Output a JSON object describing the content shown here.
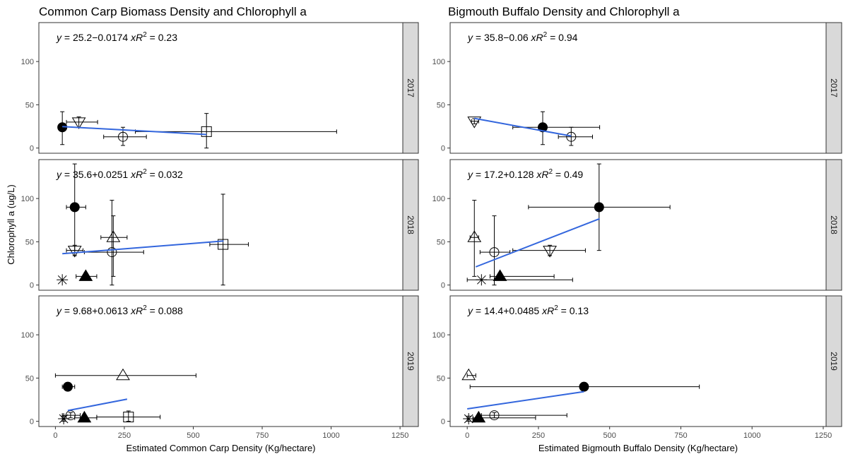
{
  "chart_data": [
    {
      "type": "scatter",
      "title": "Common Carp Biomass Density and Chlorophyll a",
      "xlabel": "Estimated Common Carp Density (Kg/hectare)",
      "ylabel": "Chlorophyll a (ug/L)",
      "xlim": [
        -60,
        1260
      ],
      "ylim": [
        -6,
        145
      ],
      "xticks": [
        "0",
        "250",
        "500",
        "750",
        "1000",
        "1250"
      ],
      "yticks": [
        "0",
        "50",
        "100"
      ],
      "grid": false,
      "facets": [
        {
          "strip": "2017",
          "fit": {
            "intercept": 25.2,
            "slope": -0.0174,
            "x_range": [
              25,
              548
            ]
          },
          "equation": {
            "y_lhs": "y",
            "eq": " = 25.2−0.0174 ",
            "x": "x",
            "r": "R",
            "exp": "2",
            "r2": " = 0.23"
          },
          "points": [
            {
              "shape": "filled-circle",
              "x": 25,
              "y": 24,
              "x_err": [
                20,
                30
              ],
              "y_err": [
                4,
                42
              ]
            },
            {
              "shape": "open-triangle-down",
              "x": 85,
              "y": 30,
              "x_err": [
                40,
                153
              ],
              "y_err": [
                24,
                36
              ]
            },
            {
              "shape": "open-circle",
              "x": 245,
              "y": 13,
              "x_err": [
                175,
                330
              ],
              "y_err": [
                3,
                24
              ]
            },
            {
              "shape": "open-square",
              "x": 548,
              "y": 19,
              "x_err": [
                290,
                1020
              ],
              "y_err": [
                0,
                40
              ]
            }
          ]
        },
        {
          "strip": "2018",
          "fit": {
            "intercept": 35.6,
            "slope": 0.0251,
            "x_range": [
              25,
              610
            ]
          },
          "equation": {
            "y_lhs": "y",
            "eq": " = 35.6+0.0251 ",
            "x": "x",
            "r": "R",
            "exp": "2",
            "r2": " = 0.032"
          },
          "points": [
            {
              "shape": "filled-circle",
              "x": 70,
              "y": 90,
              "x_err": [
                40,
                110
              ],
              "y_err": [
                40,
                140
              ]
            },
            {
              "shape": "open-triangle-down",
              "x": 70,
              "y": 40,
              "x_err": [
                40,
                100
              ],
              "y_err": [
                34,
                46
              ]
            },
            {
              "shape": "open-triangle-up",
              "x": 210,
              "y": 55,
              "x_err": [
                165,
                260
              ],
              "y_err": [
                10,
                80
              ]
            },
            {
              "shape": "open-circle",
              "x": 205,
              "y": 38,
              "x_err": [
                105,
                320
              ],
              "y_err": [
                0,
                98
              ]
            },
            {
              "shape": "open-square",
              "x": 608,
              "y": 47,
              "x_err": [
                560,
                700
              ],
              "y_err": [
                0,
                105
              ]
            },
            {
              "shape": "asterisk",
              "x": 25,
              "y": 6,
              "x_err": [
                25,
                25
              ],
              "y_err": [
                6,
                6
              ]
            },
            {
              "shape": "filled-triangle-up",
              "x": 110,
              "y": 10,
              "x_err": [
                75,
                150
              ],
              "y_err": [
                6,
                14
              ]
            }
          ]
        },
        {
          "strip": "2019",
          "fit": {
            "intercept": 9.68,
            "slope": 0.0613,
            "x_range": [
              45,
              260
            ]
          },
          "equation": {
            "y_lhs": "y",
            "eq": " = 9.68+0.0613 ",
            "x": "x",
            "r": "R",
            "exp": "2",
            "r2": " = 0.088"
          },
          "points": [
            {
              "shape": "filled-circle",
              "x": 45,
              "y": 40,
              "x_err": [
                25,
                70
              ],
              "y_err": [
                36,
                44
              ]
            },
            {
              "shape": "open-triangle-up",
              "x": 245,
              "y": 53,
              "x_err": [
                0,
                510
              ],
              "y_err": [
                53,
                53
              ]
            },
            {
              "shape": "open-circle",
              "x": 55,
              "y": 7,
              "x_err": [
                25,
                90
              ],
              "y_err": [
                4,
                10
              ]
            },
            {
              "shape": "open-square",
              "x": 265,
              "y": 5,
              "x_err": [
                150,
                380
              ],
              "y_err": [
                0,
                12
              ]
            },
            {
              "shape": "asterisk",
              "x": 30,
              "y": 3,
              "x_err": [
                25,
                35
              ],
              "y_err": [
                0,
                6
              ]
            },
            {
              "shape": "filled-triangle-up",
              "x": 105,
              "y": 4,
              "x_err": [
                70,
                150
              ],
              "y_err": [
                2,
                6
              ]
            }
          ]
        }
      ]
    },
    {
      "type": "scatter",
      "title": "Bigmouth Buffalo Density and Chlorophyll a",
      "xlabel": "Estimated Bigmouth Buffalo Density (Kg/hectare)",
      "ylabel": "",
      "xlim": [
        -60,
        1260
      ],
      "ylim": [
        -6,
        145
      ],
      "xticks": [
        "0",
        "250",
        "500",
        "750",
        "1000",
        "1250"
      ],
      "yticks": [
        "0",
        "50",
        "100"
      ],
      "grid": false,
      "facets": [
        {
          "strip": "2017",
          "fit": {
            "intercept": 35.8,
            "slope": -0.06,
            "x_range": [
              25,
              365
            ]
          },
          "equation": {
            "y_lhs": "y",
            "eq": " = 35.8−0.06 ",
            "x": "x",
            "r": "R",
            "exp": "2",
            "r2": " = 0.94"
          },
          "points": [
            {
              "shape": "open-triangle-down",
              "x": 25,
              "y": 31,
              "x_err": [
                15,
                40
              ],
              "y_err": [
                28,
                34
              ]
            },
            {
              "shape": "filled-circle",
              "x": 265,
              "y": 24,
              "x_err": [
                160,
                465
              ],
              "y_err": [
                4,
                42
              ]
            },
            {
              "shape": "open-circle",
              "x": 365,
              "y": 13,
              "x_err": [
                320,
                440
              ],
              "y_err": [
                3,
                24
              ]
            }
          ]
        },
        {
          "strip": "2018",
          "fit": {
            "intercept": 17.2,
            "slope": 0.128,
            "x_range": [
              30,
              465
            ]
          },
          "equation": {
            "y_lhs": "y",
            "eq": " = 17.2+0.128 ",
            "x": "x",
            "r": "R",
            "exp": "2",
            "r2": " = 0.49"
          },
          "points": [
            {
              "shape": "filled-circle",
              "x": 463,
              "y": 90,
              "x_err": [
                215,
                712
              ],
              "y_err": [
                40,
                140
              ]
            },
            {
              "shape": "open-triangle-up",
              "x": 25,
              "y": 55,
              "x_err": [
                10,
                40
              ],
              "y_err": [
                10,
                98
              ]
            },
            {
              "shape": "open-circle",
              "x": 95,
              "y": 38,
              "x_err": [
                45,
                150
              ],
              "y_err": [
                0,
                80
              ]
            },
            {
              "shape": "open-triangle-down",
              "x": 290,
              "y": 40,
              "x_err": [
                160,
                415
              ],
              "y_err": [
                34,
                46
              ]
            },
            {
              "shape": "asterisk",
              "x": 50,
              "y": 6,
              "x_err": [
                0,
                370
              ],
              "y_err": [
                6,
                6
              ]
            },
            {
              "shape": "filled-triangle-up",
              "x": 115,
              "y": 10,
              "x_err": [
                80,
                305
              ],
              "y_err": [
                6,
                14
              ]
            }
          ]
        },
        {
          "strip": "2019",
          "fit": {
            "intercept": 14.4,
            "slope": 0.0485,
            "x_range": [
              0,
              410
            ]
          },
          "equation": {
            "y_lhs": "y",
            "eq": " = 14.4+0.0485 ",
            "x": "x",
            "r": "R",
            "exp": "2",
            "r2": " = 0.13"
          },
          "points": [
            {
              "shape": "open-triangle-up",
              "x": 5,
              "y": 53,
              "x_err": [
                0,
                30
              ],
              "y_err": [
                53,
                53
              ]
            },
            {
              "shape": "filled-circle",
              "x": 410,
              "y": 40,
              "x_err": [
                10,
                815
              ],
              "y_err": [
                36,
                44
              ]
            },
            {
              "shape": "open-circle",
              "x": 95,
              "y": 7,
              "x_err": [
                50,
                350
              ],
              "y_err": [
                4,
                10
              ]
            },
            {
              "shape": "asterisk",
              "x": 5,
              "y": 3,
              "x_err": [
                0,
                20
              ],
              "y_err": [
                0,
                6
              ]
            },
            {
              "shape": "filled-triangle-up",
              "x": 40,
              "y": 4,
              "x_err": [
                20,
                240
              ],
              "y_err": [
                2,
                6
              ]
            }
          ]
        }
      ]
    }
  ]
}
